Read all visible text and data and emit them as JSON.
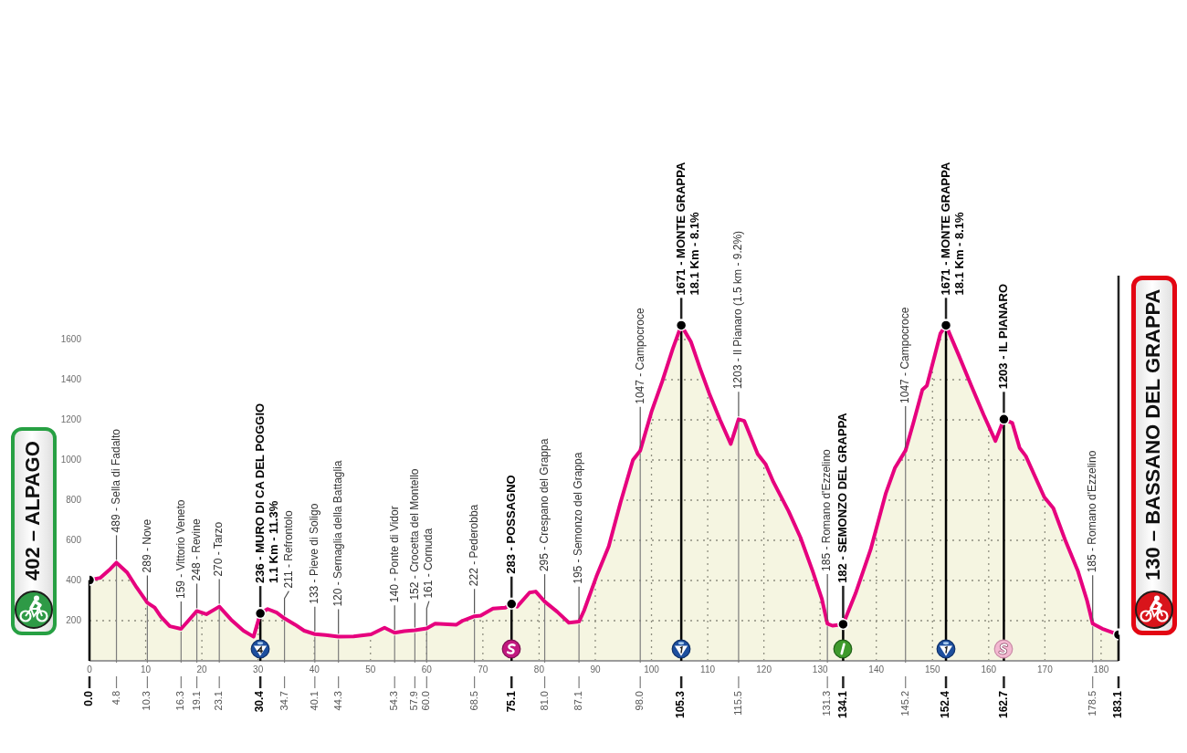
{
  "chart_data": {
    "type": "area",
    "x": [
      0,
      1.9,
      3.5,
      4.8,
      6.7,
      8.4,
      10.3,
      11.6,
      12.7,
      14.3,
      16.3,
      17.6,
      19.1,
      20.8,
      23.1,
      25.2,
      27.4,
      29.2,
      30.4,
      31.7,
      33.3,
      34.7,
      36.6,
      38.2,
      40.1,
      42,
      44.3,
      47,
      50.1,
      52.5,
      54.3,
      56,
      57.9,
      60,
      61.5,
      65.3,
      66.4,
      68.5,
      69.6,
      71.8,
      74,
      75.1,
      76.1,
      78.3,
      79.4,
      81,
      83.2,
      85.3,
      87.1,
      88,
      90.2,
      92.4,
      94.5,
      96.7,
      98,
      100,
      101.9,
      103.8,
      105.3,
      107,
      108.6,
      110.3,
      112.2,
      114.1,
      115.5,
      116.5,
      118.9,
      120.3,
      121.7,
      124.4,
      126.5,
      128.7,
      130.3,
      131.3,
      132.2,
      134.1,
      136.3,
      139,
      141.7,
      143.3,
      145.2,
      146.6,
      148.2,
      149,
      150.4,
      151.4,
      152.4,
      154.7,
      156.9,
      159.1,
      161.2,
      162.7,
      164.2,
      165.5,
      166.6,
      169.9,
      171.5,
      173.7,
      175.9,
      177.5,
      178.5,
      180.2,
      183.1
    ],
    "series": [
      {
        "color": "#e6007e",
        "values": [
          402,
          413,
          452,
          489,
          440,
          365,
          289,
          265,
          220,
          172,
          159,
          200,
          248,
          232,
          270,
          205,
          150,
          120,
          236,
          258,
          240,
          211,
          180,
          150,
          133,
          128,
          120,
          122,
          132,
          165,
          140,
          148,
          152,
          161,
          185,
          180,
          200,
          222,
          225,
          260,
          265,
          283,
          270,
          340,
          345,
          295,
          245,
          190,
          195,
          250,
          420,
          570,
          790,
          1000,
          1047,
          1240,
          1390,
          1555,
          1671,
          1590,
          1460,
          1330,
          1200,
          1080,
          1203,
          1195,
          1030,
          980,
          890,
          745,
          615,
          445,
          310,
          185,
          175,
          182,
          335,
          555,
          835,
          960,
          1047,
          1185,
          1350,
          1370,
          1520,
          1630,
          1671,
          1520,
          1370,
          1225,
          1095,
          1203,
          1185,
          1060,
          1020,
          815,
          760,
          595,
          445,
          300,
          185,
          160,
          130
        ]
      },
      {
        "type": "lollipop",
        "color": "#000000",
        "marker": "circle",
        "x": [
          0,
          30.4,
          75.1,
          105.3,
          134.1,
          152.4,
          162.7,
          183.1
        ],
        "values": [
          402,
          236,
          283,
          1671,
          182,
          1671,
          1203,
          130
        ]
      }
    ],
    "xlim": [
      0,
      183.1
    ],
    "xticks": [
      0,
      10,
      20,
      30,
      40,
      50,
      60,
      70,
      80,
      90,
      100,
      110,
      120,
      130,
      140,
      150,
      160,
      170,
      180
    ],
    "x2lim": [
      0,
      183.1
    ],
    "x2ticks": [
      {
        "value": 0,
        "label": "0.0"
      },
      4.8,
      10.3,
      16.3,
      19.1,
      23.1,
      30.4,
      34.7,
      40.1,
      44.3,
      54.3,
      57.9,
      {
        "value": 60,
        "label": "60.0"
      },
      68.5,
      75.1,
      {
        "value": 81,
        "label": "81.0"
      },
      87.1,
      {
        "value": 98,
        "label": "98.0"
      },
      105.3,
      115.5,
      131.3,
      134.1,
      145.2,
      152.4,
      162.7,
      178.5,
      183.1
    ],
    "ylim": [
      0,
      2500
    ],
    "yticks": [
      200,
      400,
      600,
      800,
      1000,
      1200,
      1400,
      1600
    ],
    "grid": true,
    "line_style": "solid",
    "annotations": [
      {
        "text": "402 – ALPAGO",
        "x": 0,
        "y": 402
      },
      {
        "text": "489 - Sella di Fadalto",
        "x": 4.8,
        "y": 489
      },
      {
        "text": "289 - Nove",
        "x": 10.3,
        "y": 289
      },
      {
        "text": "159 - Vittorio Veneto",
        "x": 16.3,
        "y": 159
      },
      {
        "text": "248 - Revine",
        "x": 19.1,
        "y": 248
      },
      {
        "text": "270 - Tarzo",
        "x": 23.1,
        "y": 270
      },
      {
        "text": "236 - MURO DI CA DEL POGGIO\n1.1 Km - 11.3%",
        "x": 30.4,
        "y": 236
      },
      {
        "text": "211 - Refrontolo",
        "x": 34.7,
        "y": 211
      },
      {
        "text": "133 - Pieve di Soligo",
        "x": 40.1,
        "y": 133
      },
      {
        "text": "120 - Sernaglia della Battaglia",
        "x": 44.3,
        "y": 120
      },
      {
        "text": "140 - Ponte di Vidor",
        "x": 54.3,
        "y": 140
      },
      {
        "text": "152 - Crocetta del Montello",
        "x": 57.9,
        "y": 152
      },
      {
        "text": "161 - Cornuda",
        "x": 60,
        "y": 161
      },
      {
        "text": "222 - Pederobba",
        "x": 68.5,
        "y": 222
      },
      {
        "text": "283 - POSSAGNO",
        "x": 75.1,
        "y": 283
      },
      {
        "text": "295 - Crespano del Grappa",
        "x": 81,
        "y": 295
      },
      {
        "text": "195 - Semonzo del Grappa",
        "x": 87.1,
        "y": 195
      },
      {
        "text": "1047 - Campocroce",
        "x": 98,
        "y": 1047
      },
      {
        "text": "1671 - MONTE GRAPPA\n18.1 Km - 8.1%",
        "x": 105.3,
        "y": 1671
      },
      {
        "text": "1203 - Il Pianaro (1.5 km - 9.2%)",
        "x": 115.5,
        "y": 1203
      },
      {
        "text": "185 - Romano d'Ezzelino",
        "x": 131.3,
        "y": 185
      },
      {
        "text": "182 - SEMONZO DEL GRAPPA",
        "x": 134.1,
        "y": 182
      },
      {
        "text": "1047 - Campocroce",
        "x": 145.2,
        "y": 1047
      },
      {
        "text": "1671 - MONTE GRAPPA\n18.1 Km - 8.1%",
        "x": 152.4,
        "y": 1671
      },
      {
        "text": "1203 - IL PIANARO",
        "x": 162.7,
        "y": 1203
      },
      {
        "text": "185 - Romano d'Ezzelino",
        "x": 178.5,
        "y": 185
      },
      {
        "text": "130 – BASSANO DEL GRAPPA",
        "x": 183.1,
        "y": 130
      }
    ]
  }
}
